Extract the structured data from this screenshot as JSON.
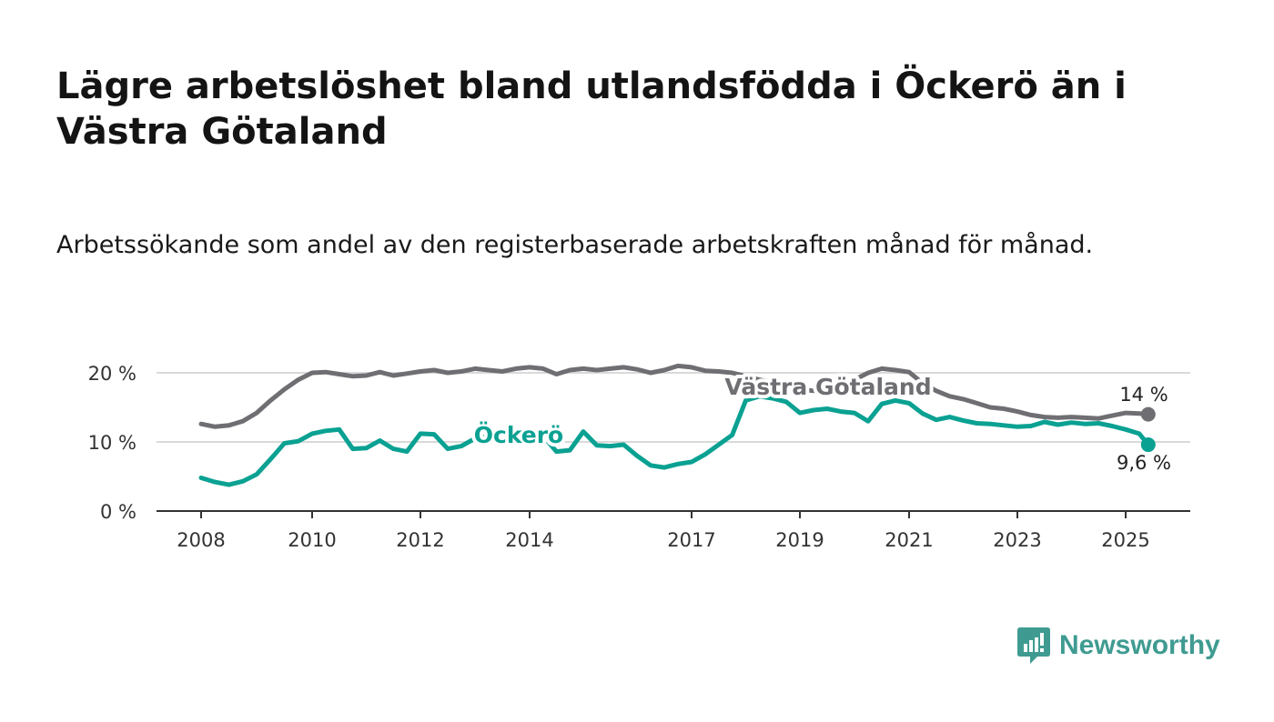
{
  "title": "Lägre arbetslöshet bland utlandsfödda i Öckerö än i Västra Götaland",
  "subtitle": "Arbetssökande som andel av den registerbaserade arbetskraften månad för månad.",
  "brand": {
    "name": "Newsworthy",
    "color": "#3f9b91"
  },
  "chart_data": {
    "type": "line",
    "ylim": [
      0,
      20
    ],
    "yticks": [
      {
        "value": 0,
        "label": "0 %"
      },
      {
        "value": 10,
        "label": "10 %"
      },
      {
        "value": 20,
        "label": "20 %"
      }
    ],
    "xticks": [
      "2008",
      "2010",
      "2012",
      "2014",
      "2017",
      "2019",
      "2021",
      "2023",
      "2025"
    ],
    "grid": true,
    "series": [
      {
        "name": "Västra Götaland",
        "color": "#6f6e73",
        "end_label": "14 %",
        "points": [
          [
            "2008-01",
            12.6
          ],
          [
            "2008-04",
            12.2
          ],
          [
            "2008-07",
            12.4
          ],
          [
            "2008-10",
            13.0
          ],
          [
            "2009-01",
            14.2
          ],
          [
            "2009-04",
            16.0
          ],
          [
            "2009-07",
            17.6
          ],
          [
            "2009-10",
            19.0
          ],
          [
            "2010-01",
            20.0
          ],
          [
            "2010-04",
            20.1
          ],
          [
            "2010-07",
            19.8
          ],
          [
            "2010-10",
            19.5
          ],
          [
            "2011-01",
            19.6
          ],
          [
            "2011-04",
            20.1
          ],
          [
            "2011-07",
            19.6
          ],
          [
            "2011-10",
            19.9
          ],
          [
            "2012-01",
            20.2
          ],
          [
            "2012-04",
            20.4
          ],
          [
            "2012-07",
            20.0
          ],
          [
            "2012-10",
            20.2
          ],
          [
            "2013-01",
            20.6
          ],
          [
            "2013-04",
            20.4
          ],
          [
            "2013-07",
            20.2
          ],
          [
            "2013-10",
            20.6
          ],
          [
            "2014-01",
            20.8
          ],
          [
            "2014-04",
            20.6
          ],
          [
            "2014-07",
            19.8
          ],
          [
            "2014-10",
            20.4
          ],
          [
            "2015-01",
            20.6
          ],
          [
            "2015-04",
            20.4
          ],
          [
            "2015-07",
            20.6
          ],
          [
            "2015-10",
            20.8
          ],
          [
            "2016-01",
            20.5
          ],
          [
            "2016-04",
            20.0
          ],
          [
            "2016-07",
            20.4
          ],
          [
            "2016-10",
            21.0
          ],
          [
            "2017-01",
            20.8
          ],
          [
            "2017-04",
            20.3
          ],
          [
            "2017-07",
            20.2
          ],
          [
            "2017-10",
            20.0
          ],
          [
            "2018-01",
            19.5
          ],
          [
            "2018-04",
            19.0
          ],
          [
            "2018-07",
            18.6
          ],
          [
            "2018-10",
            18.0
          ],
          [
            "2019-01",
            17.6
          ],
          [
            "2019-04",
            17.4
          ],
          [
            "2019-07",
            17.6
          ],
          [
            "2019-10",
            18.2
          ],
          [
            "2020-01",
            19.0
          ],
          [
            "2020-04",
            20.0
          ],
          [
            "2020-07",
            20.6
          ],
          [
            "2020-10",
            20.4
          ],
          [
            "2021-01",
            20.1
          ],
          [
            "2021-04",
            18.5
          ],
          [
            "2021-07",
            17.4
          ],
          [
            "2021-10",
            16.6
          ],
          [
            "2022-01",
            16.2
          ],
          [
            "2022-04",
            15.6
          ],
          [
            "2022-07",
            15.0
          ],
          [
            "2022-10",
            14.8
          ],
          [
            "2023-01",
            14.4
          ],
          [
            "2023-04",
            13.9
          ],
          [
            "2023-07",
            13.6
          ],
          [
            "2023-10",
            13.5
          ],
          [
            "2024-01",
            13.6
          ],
          [
            "2024-04",
            13.5
          ],
          [
            "2024-07",
            13.4
          ],
          [
            "2024-10",
            13.8
          ],
          [
            "2025-01",
            14.2
          ],
          [
            "2025-04",
            14.1
          ],
          [
            "2025-06",
            14.0
          ]
        ]
      },
      {
        "name": "Öckerö",
        "color": "#0aa192",
        "end_label": "9,6 %",
        "points": [
          [
            "2008-01",
            4.8
          ],
          [
            "2008-04",
            4.2
          ],
          [
            "2008-07",
            3.8
          ],
          [
            "2008-10",
            4.3
          ],
          [
            "2009-01",
            5.3
          ],
          [
            "2009-04",
            7.5
          ],
          [
            "2009-07",
            9.8
          ],
          [
            "2009-10",
            10.1
          ],
          [
            "2010-01",
            11.2
          ],
          [
            "2010-04",
            11.6
          ],
          [
            "2010-07",
            11.8
          ],
          [
            "2010-10",
            9.0
          ],
          [
            "2011-01",
            9.1
          ],
          [
            "2011-04",
            10.2
          ],
          [
            "2011-07",
            9.0
          ],
          [
            "2011-10",
            8.6
          ],
          [
            "2012-01",
            11.2
          ],
          [
            "2012-04",
            11.1
          ],
          [
            "2012-07",
            9.0
          ],
          [
            "2012-10",
            9.4
          ],
          [
            "2013-01",
            10.5
          ],
          [
            "2013-04",
            10.8
          ],
          [
            "2013-07",
            10.1
          ],
          [
            "2013-10",
            10.2
          ],
          [
            "2014-01",
            11.8
          ],
          [
            "2014-04",
            10.9
          ],
          [
            "2014-07",
            8.6
          ],
          [
            "2014-10",
            8.8
          ],
          [
            "2015-01",
            11.5
          ],
          [
            "2015-04",
            9.5
          ],
          [
            "2015-07",
            9.4
          ],
          [
            "2015-10",
            9.6
          ],
          [
            "2016-01",
            8.0
          ],
          [
            "2016-04",
            6.6
          ],
          [
            "2016-07",
            6.3
          ],
          [
            "2016-10",
            6.8
          ],
          [
            "2017-01",
            7.1
          ],
          [
            "2017-04",
            8.2
          ],
          [
            "2017-07",
            9.6
          ],
          [
            "2017-10",
            11.0
          ],
          [
            "2018-01",
            16.0
          ],
          [
            "2018-04",
            16.6
          ],
          [
            "2018-07",
            16.3
          ],
          [
            "2018-10",
            15.8
          ],
          [
            "2019-01",
            14.2
          ],
          [
            "2019-04",
            14.6
          ],
          [
            "2019-07",
            14.8
          ],
          [
            "2019-10",
            14.4
          ],
          [
            "2020-01",
            14.2
          ],
          [
            "2020-04",
            13.0
          ],
          [
            "2020-07",
            15.5
          ],
          [
            "2020-10",
            16.0
          ],
          [
            "2021-01",
            15.6
          ],
          [
            "2021-04",
            14.1
          ],
          [
            "2021-07",
            13.2
          ],
          [
            "2021-10",
            13.6
          ],
          [
            "2022-01",
            13.1
          ],
          [
            "2022-04",
            12.7
          ],
          [
            "2022-07",
            12.6
          ],
          [
            "2022-10",
            12.4
          ],
          [
            "2023-01",
            12.2
          ],
          [
            "2023-04",
            12.3
          ],
          [
            "2023-07",
            12.9
          ],
          [
            "2023-10",
            12.5
          ],
          [
            "2024-01",
            12.8
          ],
          [
            "2024-04",
            12.6
          ],
          [
            "2024-07",
            12.7
          ],
          [
            "2024-10",
            12.3
          ],
          [
            "2025-01",
            11.8
          ],
          [
            "2025-04",
            11.2
          ],
          [
            "2025-06",
            9.6
          ]
        ]
      }
    ]
  }
}
